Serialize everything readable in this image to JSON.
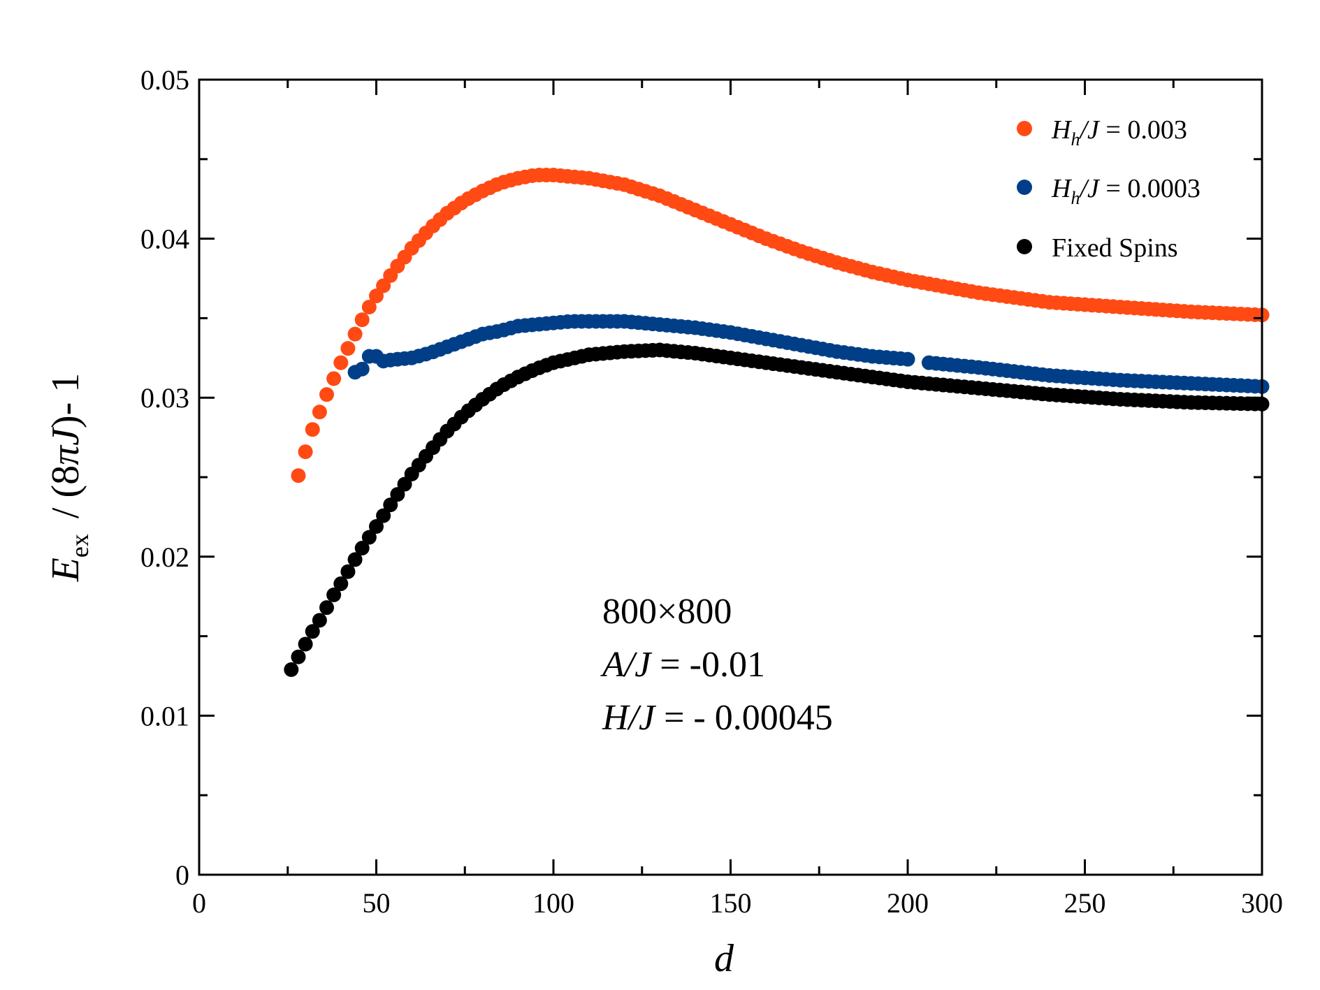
{
  "chart_data": {
    "type": "scatter",
    "title": "",
    "xlabel": "d",
    "ylabel": {
      "E": "E",
      "sub": "ex",
      "rest1": "/ (8",
      "pi": "π",
      "J": "J",
      "rest2": ")- 1"
    },
    "xlim": [
      0,
      300
    ],
    "ylim": [
      0,
      0.05
    ],
    "x_ticks": [
      0,
      50,
      100,
      150,
      200,
      250,
      300
    ],
    "x_tick_labels": [
      "0",
      "50",
      "100",
      "150",
      "200",
      "250",
      "300"
    ],
    "y_ticks": [
      0,
      0.01,
      0.02,
      0.03,
      0.04,
      0.05
    ],
    "y_tick_labels": [
      "0",
      "0.01",
      "0.02",
      "0.03",
      "0.04",
      "0.05"
    ],
    "legend_position": "top-right",
    "annotation": {
      "size": "800×800",
      "line2_var": "A/J",
      "line2_val": " = -0.01",
      "line3_var": "H/J",
      "line3_val": " = - 0.00045"
    },
    "series": [
      {
        "name": "H_h/J = 0.003",
        "legend": {
          "H": "H",
          "sub": "h",
          "J": "/J",
          "val": " = 0.003"
        },
        "color": "#ff4a14",
        "key_points": [
          [
            28,
            0.0251
          ],
          [
            30,
            0.0266
          ],
          [
            32,
            0.028
          ],
          [
            34,
            0.0291
          ],
          [
            36,
            0.0302
          ],
          [
            38,
            0.0312
          ],
          [
            40,
            0.0322
          ],
          [
            42,
            0.0331
          ],
          [
            44,
            0.034
          ],
          [
            46,
            0.0349
          ],
          [
            48,
            0.0357
          ],
          [
            50,
            0.0364
          ],
          [
            55,
            0.038
          ],
          [
            60,
            0.0394
          ],
          [
            65,
            0.0406
          ],
          [
            70,
            0.0416
          ],
          [
            75,
            0.0424
          ],
          [
            80,
            0.043
          ],
          [
            85,
            0.0435
          ],
          [
            90,
            0.0438
          ],
          [
            95,
            0.044
          ],
          [
            100,
            0.044
          ],
          [
            110,
            0.0438
          ],
          [
            120,
            0.0434
          ],
          [
            130,
            0.0427
          ],
          [
            140,
            0.0418
          ],
          [
            150,
            0.0409
          ],
          [
            160,
            0.04
          ],
          [
            170,
            0.0392
          ],
          [
            180,
            0.0385
          ],
          [
            190,
            0.0379
          ],
          [
            200,
            0.0374
          ],
          [
            220,
            0.0366
          ],
          [
            240,
            0.036
          ],
          [
            260,
            0.0357
          ],
          [
            280,
            0.0354
          ],
          [
            300,
            0.0352
          ]
        ]
      },
      {
        "name": "H_h/J = 0.0003",
        "legend": {
          "H": "H",
          "sub": "h",
          "J": "/J",
          "val": " = 0.0003"
        },
        "color": "#003f87",
        "key_points": [
          [
            44,
            0.0316
          ],
          [
            46,
            0.0318
          ],
          [
            48,
            0.0326
          ],
          [
            50,
            0.0326
          ],
          [
            52,
            0.0323
          ],
          [
            55,
            0.0324
          ],
          [
            60,
            0.0325
          ],
          [
            65,
            0.0328
          ],
          [
            70,
            0.0332
          ],
          [
            75,
            0.0336
          ],
          [
            80,
            0.034
          ],
          [
            85,
            0.0342
          ],
          [
            90,
            0.0345
          ],
          [
            95,
            0.0346
          ],
          [
            100,
            0.0347
          ],
          [
            105,
            0.0348
          ],
          [
            110,
            0.0348
          ],
          [
            120,
            0.0348
          ],
          [
            130,
            0.0346
          ],
          [
            140,
            0.0344
          ],
          [
            150,
            0.0341
          ],
          [
            160,
            0.0337
          ],
          [
            170,
            0.0333
          ],
          [
            180,
            0.0329
          ],
          [
            190,
            0.0326
          ],
          [
            201,
            0.0324
          ],
          [
            206,
            0.0322
          ],
          [
            220,
            0.0319
          ],
          [
            240,
            0.0314
          ],
          [
            260,
            0.0311
          ],
          [
            280,
            0.0309
          ],
          [
            300,
            0.0307
          ]
        ],
        "gap": [
          201,
          206
        ]
      },
      {
        "name": "Fixed Spins",
        "legend": {
          "label": "Fixed Spins"
        },
        "color": "#000000",
        "key_points": [
          [
            26,
            0.0129
          ],
          [
            28,
            0.0137
          ],
          [
            30,
            0.0145
          ],
          [
            32,
            0.0153
          ],
          [
            34,
            0.016
          ],
          [
            36,
            0.0168
          ],
          [
            38,
            0.0176
          ],
          [
            40,
            0.0183
          ],
          [
            45,
            0.0202
          ],
          [
            50,
            0.0219
          ],
          [
            55,
            0.0236
          ],
          [
            60,
            0.0252
          ],
          [
            65,
            0.0266
          ],
          [
            70,
            0.0279
          ],
          [
            75,
            0.029
          ],
          [
            80,
            0.0299
          ],
          [
            85,
            0.0307
          ],
          [
            90,
            0.0313
          ],
          [
            95,
            0.0318
          ],
          [
            100,
            0.0322
          ],
          [
            110,
            0.0327
          ],
          [
            120,
            0.0329
          ],
          [
            130,
            0.033
          ],
          [
            140,
            0.0328
          ],
          [
            150,
            0.0325
          ],
          [
            160,
            0.0322
          ],
          [
            170,
            0.0319
          ],
          [
            180,
            0.0316
          ],
          [
            190,
            0.0313
          ],
          [
            200,
            0.031
          ],
          [
            220,
            0.0306
          ],
          [
            240,
            0.0302
          ],
          [
            260,
            0.0299
          ],
          [
            280,
            0.0297
          ],
          [
            300,
            0.0296
          ]
        ]
      }
    ]
  }
}
